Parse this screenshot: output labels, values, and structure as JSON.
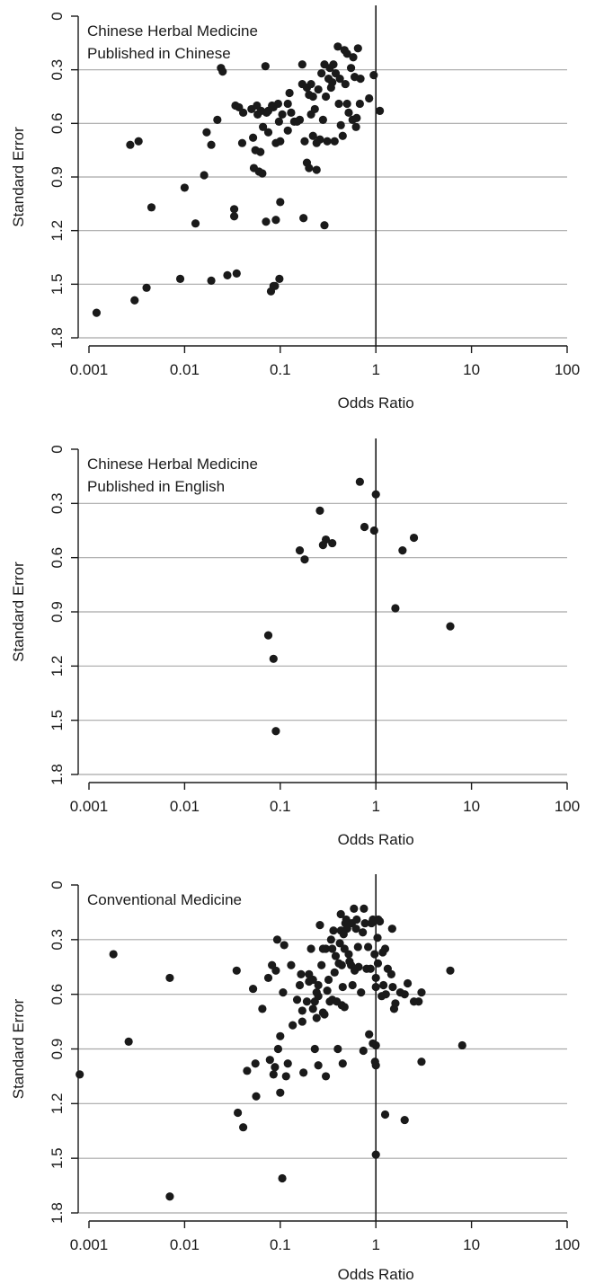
{
  "chart_data": [
    {
      "type": "scatter",
      "title_lines": [
        "Chinese Herbal Medicine",
        "Published in Chinese"
      ],
      "xlabel": "Odds Ratio",
      "ylabel": "Standard Error",
      "xscale": "log",
      "xlim": [
        0.001,
        100
      ],
      "ylim": [
        0,
        1.8
      ],
      "y_inverted": true,
      "xticks": [
        "0.001",
        "0.01",
        "0.1",
        "1",
        "10",
        "100"
      ],
      "yticks": [
        "0",
        "0.3",
        "0.6",
        "0.9",
        "1.2",
        "1.5",
        "1.8"
      ],
      "reference_line_x": 1,
      "grid": "horizontal",
      "points": [
        [
          0.0012,
          1.66
        ],
        [
          0.0027,
          0.72
        ],
        [
          0.0033,
          0.7
        ],
        [
          0.0045,
          1.07
        ],
        [
          0.003,
          1.59
        ],
        [
          0.004,
          1.52
        ],
        [
          0.009,
          1.47
        ],
        [
          0.01,
          0.96
        ],
        [
          0.013,
          1.16
        ],
        [
          0.016,
          0.89
        ],
        [
          0.017,
          0.65
        ],
        [
          0.019,
          0.72
        ],
        [
          0.019,
          1.48
        ],
        [
          0.022,
          0.58
        ],
        [
          0.024,
          0.29
        ],
        [
          0.025,
          0.31
        ],
        [
          0.028,
          1.45
        ],
        [
          0.033,
          1.08
        ],
        [
          0.033,
          1.12
        ],
        [
          0.034,
          0.5
        ],
        [
          0.035,
          1.44
        ],
        [
          0.037,
          0.51
        ],
        [
          0.04,
          0.71
        ],
        [
          0.041,
          0.54
        ],
        [
          0.05,
          0.52
        ],
        [
          0.052,
          0.68
        ],
        [
          0.053,
          0.85
        ],
        [
          0.055,
          0.75
        ],
        [
          0.057,
          0.5
        ],
        [
          0.058,
          0.55
        ],
        [
          0.06,
          0.87
        ],
        [
          0.062,
          0.76
        ],
        [
          0.063,
          0.53
        ],
        [
          0.065,
          0.88
        ],
        [
          0.066,
          0.62
        ],
        [
          0.07,
          0.28
        ],
        [
          0.071,
          1.15
        ],
        [
          0.072,
          0.54
        ],
        [
          0.075,
          0.65
        ],
        [
          0.075,
          0.53
        ],
        [
          0.08,
          1.54
        ],
        [
          0.082,
          0.5
        ],
        [
          0.085,
          0.51
        ],
        [
          0.085,
          1.51
        ],
        [
          0.088,
          1.51
        ],
        [
          0.09,
          1.14
        ],
        [
          0.09,
          0.71
        ],
        [
          0.095,
          0.49
        ],
        [
          0.097,
          0.59
        ],
        [
          0.098,
          1.47
        ],
        [
          0.1,
          0.7
        ],
        [
          0.1,
          1.04
        ],
        [
          0.105,
          0.55
        ],
        [
          0.12,
          0.49
        ],
        [
          0.12,
          0.64
        ],
        [
          0.125,
          0.43
        ],
        [
          0.13,
          0.54
        ],
        [
          0.14,
          0.59
        ],
        [
          0.15,
          0.59
        ],
        [
          0.16,
          0.58
        ],
        [
          0.17,
          0.27
        ],
        [
          0.17,
          0.38
        ],
        [
          0.175,
          1.13
        ],
        [
          0.18,
          0.7
        ],
        [
          0.19,
          0.82
        ],
        [
          0.19,
          0.4
        ],
        [
          0.2,
          0.85
        ],
        [
          0.2,
          0.44
        ],
        [
          0.21,
          0.38
        ],
        [
          0.21,
          0.55
        ],
        [
          0.22,
          0.45
        ],
        [
          0.22,
          0.67
        ],
        [
          0.23,
          0.52
        ],
        [
          0.24,
          0.71
        ],
        [
          0.24,
          0.86
        ],
        [
          0.25,
          0.41
        ],
        [
          0.26,
          0.69
        ],
        [
          0.27,
          0.32
        ],
        [
          0.28,
          0.58
        ],
        [
          0.29,
          0.27
        ],
        [
          0.29,
          1.17
        ],
        [
          0.3,
          0.45
        ],
        [
          0.31,
          0.7
        ],
        [
          0.32,
          0.35
        ],
        [
          0.33,
          0.29
        ],
        [
          0.34,
          0.4
        ],
        [
          0.35,
          0.37
        ],
        [
          0.36,
          0.27
        ],
        [
          0.37,
          0.7
        ],
        [
          0.38,
          0.32
        ],
        [
          0.4,
          0.17
        ],
        [
          0.41,
          0.49
        ],
        [
          0.42,
          0.35
        ],
        [
          0.43,
          0.61
        ],
        [
          0.45,
          0.67
        ],
        [
          0.47,
          0.19
        ],
        [
          0.48,
          0.38
        ],
        [
          0.5,
          0.21
        ],
        [
          0.5,
          0.49
        ],
        [
          0.52,
          0.54
        ],
        [
          0.55,
          0.29
        ],
        [
          0.57,
          0.58
        ],
        [
          0.58,
          0.23
        ],
        [
          0.6,
          0.34
        ],
        [
          0.62,
          0.62
        ],
        [
          0.63,
          0.57
        ],
        [
          0.65,
          0.18
        ],
        [
          0.68,
          0.49
        ],
        [
          0.69,
          0.35
        ],
        [
          0.85,
          0.46
        ],
        [
          0.95,
          0.33
        ],
        [
          1.1,
          0.53
        ]
      ]
    },
    {
      "type": "scatter",
      "title_lines": [
        "Chinese Herbal Medicine",
        "Published in English"
      ],
      "xlabel": "Odds Ratio",
      "ylabel": "Standard Error",
      "xscale": "log",
      "xlim": [
        0.001,
        100
      ],
      "ylim": [
        0,
        1.8
      ],
      "y_inverted": true,
      "xticks": [
        "0.001",
        "0.01",
        "0.1",
        "1",
        "10",
        "100"
      ],
      "yticks": [
        "0",
        "0.3",
        "0.6",
        "0.9",
        "1.2",
        "1.5",
        "1.8"
      ],
      "reference_line_x": 1,
      "grid": "horizontal",
      "points": [
        [
          0.075,
          1.03
        ],
        [
          0.085,
          1.16
        ],
        [
          0.09,
          1.56
        ],
        [
          0.16,
          0.56
        ],
        [
          0.18,
          0.61
        ],
        [
          0.26,
          0.34
        ],
        [
          0.28,
          0.53
        ],
        [
          0.3,
          0.5
        ],
        [
          0.35,
          0.52
        ],
        [
          0.68,
          0.18
        ],
        [
          0.76,
          0.43
        ],
        [
          0.96,
          0.45
        ],
        [
          1.0,
          0.25
        ],
        [
          1.6,
          0.88
        ],
        [
          1.9,
          0.56
        ],
        [
          2.5,
          0.49
        ],
        [
          6.0,
          0.98
        ]
      ]
    },
    {
      "type": "scatter",
      "title_lines": [
        "Conventional Medicine"
      ],
      "xlabel": "Odds Ratio",
      "ylabel": "Standard Error",
      "xscale": "log",
      "xlim": [
        0.001,
        100
      ],
      "ylim": [
        0,
        1.8
      ],
      "y_inverted": true,
      "xticks": [
        "0.001",
        "0.01",
        "0.1",
        "1",
        "10",
        "100"
      ],
      "yticks": [
        "0",
        "0.3",
        "0.6",
        "0.9",
        "1.2",
        "1.5",
        "1.8"
      ],
      "reference_line_x": 1,
      "grid": "horizontal",
      "points": [
        [
          0.0008,
          1.04
        ],
        [
          0.0018,
          0.38
        ],
        [
          0.0026,
          0.86
        ],
        [
          0.007,
          0.51
        ],
        [
          0.007,
          1.71
        ],
        [
          0.035,
          0.47
        ],
        [
          0.036,
          1.25
        ],
        [
          0.041,
          1.33
        ],
        [
          0.045,
          1.02
        ],
        [
          0.052,
          0.57
        ],
        [
          0.055,
          0.98
        ],
        [
          0.056,
          1.16
        ],
        [
          0.065,
          0.68
        ],
        [
          0.075,
          0.51
        ],
        [
          0.078,
          0.96
        ],
        [
          0.082,
          0.44
        ],
        [
          0.085,
          1.04
        ],
        [
          0.088,
          1.0
        ],
        [
          0.09,
          0.47
        ],
        [
          0.093,
          0.3
        ],
        [
          0.095,
          0.9
        ],
        [
          0.1,
          0.83
        ],
        [
          0.1,
          1.14
        ],
        [
          0.105,
          1.61
        ],
        [
          0.107,
          0.59
        ],
        [
          0.11,
          0.33
        ],
        [
          0.115,
          1.05
        ],
        [
          0.12,
          0.98
        ],
        [
          0.13,
          0.44
        ],
        [
          0.135,
          0.77
        ],
        [
          0.15,
          0.63
        ],
        [
          0.16,
          0.55
        ],
        [
          0.165,
          0.49
        ],
        [
          0.17,
          0.69
        ],
        [
          0.17,
          0.75
        ],
        [
          0.175,
          1.03
        ],
        [
          0.19,
          0.64
        ],
        [
          0.2,
          0.49
        ],
        [
          0.2,
          0.53
        ],
        [
          0.21,
          0.35
        ],
        [
          0.22,
          0.52
        ],
        [
          0.22,
          0.68
        ],
        [
          0.23,
          0.64
        ],
        [
          0.23,
          0.9
        ],
        [
          0.24,
          0.59
        ],
        [
          0.24,
          0.73
        ],
        [
          0.25,
          0.61
        ],
        [
          0.25,
          0.55
        ],
        [
          0.25,
          0.99
        ],
        [
          0.26,
          0.22
        ],
        [
          0.27,
          0.44
        ],
        [
          0.28,
          0.7
        ],
        [
          0.28,
          0.35
        ],
        [
          0.29,
          0.71
        ],
        [
          0.3,
          0.35
        ],
        [
          0.3,
          1.05
        ],
        [
          0.31,
          0.58
        ],
        [
          0.32,
          0.52
        ],
        [
          0.33,
          0.64
        ],
        [
          0.34,
          0.3
        ],
        [
          0.35,
          0.63
        ],
        [
          0.35,
          0.35
        ],
        [
          0.36,
          0.25
        ],
        [
          0.37,
          0.48
        ],
        [
          0.38,
          0.39
        ],
        [
          0.39,
          0.64
        ],
        [
          0.4,
          0.9
        ],
        [
          0.41,
          0.43
        ],
        [
          0.42,
          0.32
        ],
        [
          0.43,
          0.16
        ],
        [
          0.43,
          0.25
        ],
        [
          0.44,
          0.44
        ],
        [
          0.44,
          0.66
        ],
        [
          0.45,
          0.56
        ],
        [
          0.45,
          0.98
        ],
        [
          0.46,
          0.27
        ],
        [
          0.47,
          0.35
        ],
        [
          0.47,
          0.67
        ],
        [
          0.48,
          0.21
        ],
        [
          0.49,
          0.19
        ],
        [
          0.5,
          0.24
        ],
        [
          0.52,
          0.38
        ],
        [
          0.53,
          0.42
        ],
        [
          0.55,
          0.44
        ],
        [
          0.56,
          0.21
        ],
        [
          0.57,
          0.55
        ],
        [
          0.59,
          0.13
        ],
        [
          0.6,
          0.47
        ],
        [
          0.62,
          0.24
        ],
        [
          0.63,
          0.19
        ],
        [
          0.65,
          0.34
        ],
        [
          0.66,
          0.45
        ],
        [
          0.7,
          0.59
        ],
        [
          0.73,
          0.26
        ],
        [
          0.74,
          0.91
        ],
        [
          0.75,
          0.13
        ],
        [
          0.77,
          0.21
        ],
        [
          0.8,
          0.46
        ],
        [
          0.83,
          0.34
        ],
        [
          0.85,
          0.82
        ],
        [
          0.88,
          0.46
        ],
        [
          0.9,
          0.21
        ],
        [
          0.93,
          0.19
        ],
        [
          0.93,
          0.87
        ],
        [
          0.97,
          0.38
        ],
        [
          0.98,
          0.97
        ],
        [
          1.0,
          0.51
        ],
        [
          1.0,
          0.56
        ],
        [
          1.0,
          0.88
        ],
        [
          1.0,
          0.99
        ],
        [
          1.0,
          1.48
        ],
        [
          1.04,
          0.29
        ],
        [
          1.05,
          0.43
        ],
        [
          1.06,
          0.19
        ],
        [
          1.1,
          0.2
        ],
        [
          1.15,
          0.61
        ],
        [
          1.18,
          0.37
        ],
        [
          1.2,
          0.55
        ],
        [
          1.25,
          0.35
        ],
        [
          1.25,
          1.26
        ],
        [
          1.27,
          0.6
        ],
        [
          1.33,
          0.46
        ],
        [
          1.45,
          0.49
        ],
        [
          1.48,
          0.24
        ],
        [
          1.5,
          0.56
        ],
        [
          1.55,
          0.68
        ],
        [
          1.6,
          0.65
        ],
        [
          1.8,
          0.59
        ],
        [
          2.0,
          0.6
        ],
        [
          2.0,
          1.29
        ],
        [
          2.15,
          0.54
        ],
        [
          2.5,
          0.64
        ],
        [
          2.8,
          0.64
        ],
        [
          3.0,
          0.59
        ],
        [
          3.0,
          0.97
        ],
        [
          6.0,
          0.47
        ],
        [
          8.0,
          0.88
        ]
      ]
    }
  ]
}
